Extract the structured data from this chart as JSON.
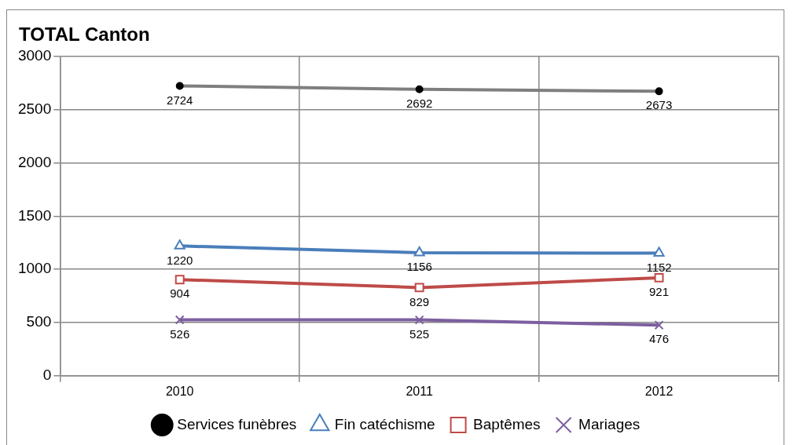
{
  "chart_data": {
    "type": "line",
    "title": "TOTAL Canton",
    "categories": [
      "2010",
      "2011",
      "2012"
    ],
    "series": [
      {
        "name": "Services funèbres",
        "color": "#7f7f7f",
        "marker": "circle",
        "values": [
          2724,
          2692,
          2673
        ]
      },
      {
        "name": "Fin catéchisme",
        "color": "#4a7ebb",
        "marker": "triangle",
        "values": [
          1220,
          1156,
          1152
        ]
      },
      {
        "name": "Baptêmes",
        "color": "#be4b48",
        "marker": "square",
        "values": [
          904,
          829,
          921
        ]
      },
      {
        "name": "Mariages",
        "color": "#7d5fa0",
        "marker": "cross",
        "values": [
          526,
          525,
          476
        ]
      }
    ],
    "ylim": [
      0,
      3000
    ],
    "yticks": [
      0,
      500,
      1000,
      1500,
      2000,
      2500,
      3000
    ],
    "grid": true,
    "legend": "bottom",
    "data_labels": true,
    "line_style": "solid"
  }
}
